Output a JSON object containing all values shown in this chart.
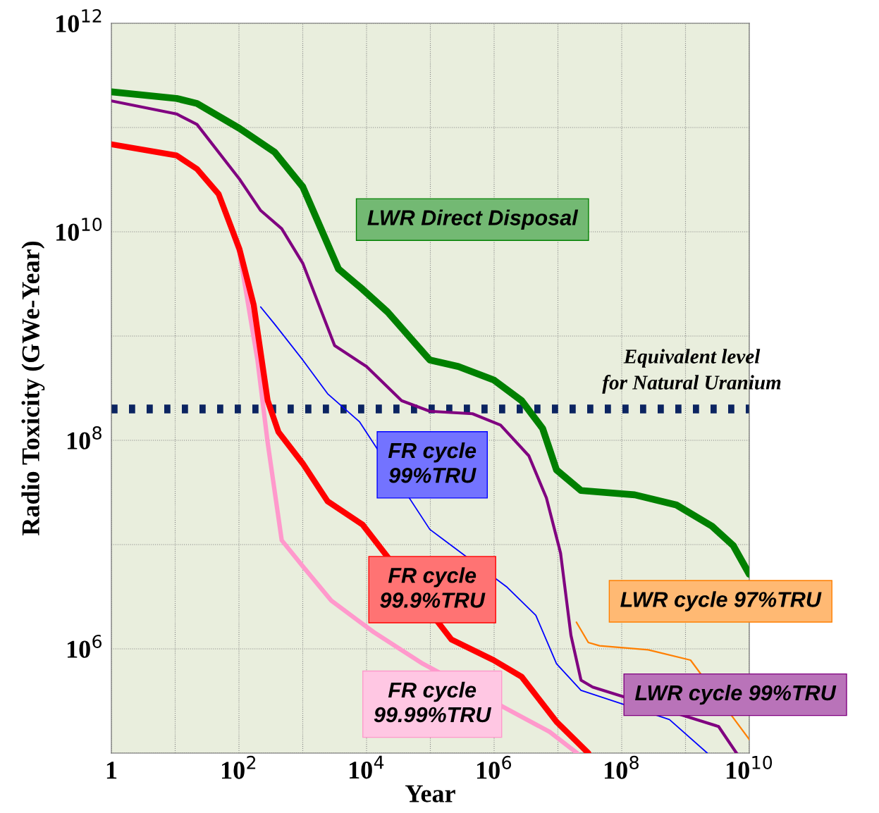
{
  "chart_data": {
    "type": "line",
    "xlabel": "Year",
    "ylabel": "Radio Toxicity (GWe-Year)",
    "log": "xy",
    "grid": true,
    "xlim": [
      1,
      10000000000.0
    ],
    "ylim": [
      100000.0,
      1000000000000.0
    ],
    "xticks": [
      {
        "value": 1,
        "label": "1"
      },
      {
        "value": 10,
        "label": null
      },
      {
        "value": 100,
        "label": "10$^{2}$"
      },
      {
        "value": 1000,
        "label": null
      },
      {
        "value": 10000,
        "label": "10$^{4}$"
      },
      {
        "value": 100000,
        "label": null
      },
      {
        "value": 1000000,
        "label": "10$^{6}$"
      },
      {
        "value": 10000000,
        "label": null
      },
      {
        "value": 100000000,
        "label": "10$^{8}$"
      },
      {
        "value": 1000000000,
        "label": null
      },
      {
        "value": 10000000000,
        "label": "10$^{10}$"
      }
    ],
    "yticks": [
      {
        "value": 100000,
        "label": null
      },
      {
        "value": 1000000,
        "label": "10$^{6}$"
      },
      {
        "value": 10000000,
        "label": null
      },
      {
        "value": 100000000,
        "label": "10$^{8}$"
      },
      {
        "value": 1000000000,
        "label": null
      },
      {
        "value": 10000000000,
        "label": "10$^{10}$"
      },
      {
        "value": 100000000000,
        "label": null
      },
      {
        "value": 1000000000000,
        "label": "10$^{12}$"
      }
    ],
    "series": [
      {
        "name": "LWR Direct Disposal",
        "color": "#008000",
        "x": [
          1,
          10.5,
          22,
          102,
          363,
          1000,
          3630,
          8700,
          21400,
          98000,
          275000,
          980000,
          2700000.0,
          5750000.0,
          9500000.0,
          23000000.0,
          160000000.0,
          720000000.0,
          2600000000.0,
          5600000000.0,
          10000000000.0
        ],
        "values": [
          220000000000.0,
          190000000000.0,
          170000000000.0,
          98000000000.0,
          58000000000.0,
          27000000000.0,
          4400000000.0,
          2800000000.0,
          1700000000.0,
          590000000.0,
          510000000.0,
          380000000.0,
          240000000.0,
          130000000.0,
          52000000.0,
          33000000.0,
          30000000.0,
          24000000.0,
          15000000.0,
          9800000.0,
          5200000.0
        ]
      },
      {
        "name": "LWR cycle 97%TRU",
        "color": "#ff7f00",
        "x": [
          19500000.0,
          30000000.0,
          45000000.0,
          260000000.0,
          1200000000.0,
          10000000000.0
        ],
        "values": [
          1800000.0,
          1150000.0,
          1070000.0,
          980000.0,
          780000.0,
          135000.0
        ]
      },
      {
        "name": "LWR cycle 99%TRU",
        "color": "#800080",
        "x": [
          1,
          10.5,
          22,
          102,
          219,
          468,
          1000,
          3160,
          10000,
          35500,
          98000,
          457000,
          1260000.0,
          3500000.0,
          6600000.0,
          11000000.0,
          16000000.0,
          23000000.0,
          35000000.0,
          3300000000.0,
          6300000000.0
        ],
        "values": [
          180000000000.0,
          135000000000.0,
          107000000000.0,
          32000000000.0,
          16000000000.0,
          10700000000.0,
          5000000000.0,
          810000000.0,
          510000000.0,
          240000000.0,
          190000000.0,
          180000000.0,
          140000000.0,
          71000000.0,
          28000000.0,
          8300000.0,
          1350000.0,
          500000.0,
          430000.0,
          180000.0,
          100000.0
        ]
      },
      {
        "name": "FR cycle\n99%TRU",
        "color": "#0000ff",
        "x": [
          219,
          363,
          1000,
          2450,
          7800,
          98000,
          1600000.0,
          4500000.0,
          9500000.0,
          23000000.0,
          560000000.0,
          2200000000.0
        ],
        "values": [
          1900000000.0,
          1300000000.0,
          590000000.0,
          280000000.0,
          150000000.0,
          14000000.0,
          3900000.0,
          2100000.0,
          720000.0,
          400000.0,
          210000.0,
          100000.0
        ]
      },
      {
        "name": "FR cycle\n99.99%TRU",
        "color": "#ff99cc",
        "x": [
          1,
          10.5,
          22,
          48,
          102,
          195,
          282,
          468,
          1000,
          2800,
          12900,
          76000,
          7400000.0,
          20000000.0
        ],
        "values": [
          69000000000.0,
          54000000000.0,
          40000000000.0,
          23000000000.0,
          6300000000.0,
          590000000.0,
          95000000.0,
          11000000.0,
          6200000.0,
          2900000.0,
          1450000.0,
          720000.0,
          160000.0,
          100000.0
        ]
      },
      {
        "name": "FR cycle\n99.9%TRU",
        "color": "#ff0000",
        "x": [
          1,
          10.5,
          22,
          48,
          102,
          170,
          282,
          417,
          1000,
          2450,
          8700,
          214000,
          980000,
          2700000.0,
          9500000.0,
          30000000.0
        ],
        "values": [
          69000000000.0,
          54000000000.0,
          40000000000.0,
          23000000000.0,
          6800000000.0,
          2000000000.0,
          240000000.0,
          120000000.0,
          60000000.0,
          26000000.0,
          15500000.0,
          1230000.0,
          780000.0,
          540000.0,
          200000.0,
          100000.0
        ]
      }
    ],
    "ref_lines": [
      {
        "axis": "y",
        "value": 200000000.0,
        "label": "Equivalent level\nfor Natural Uranium",
        "color": "#0b2461",
        "line_style": "dotted"
      }
    ]
  }
}
